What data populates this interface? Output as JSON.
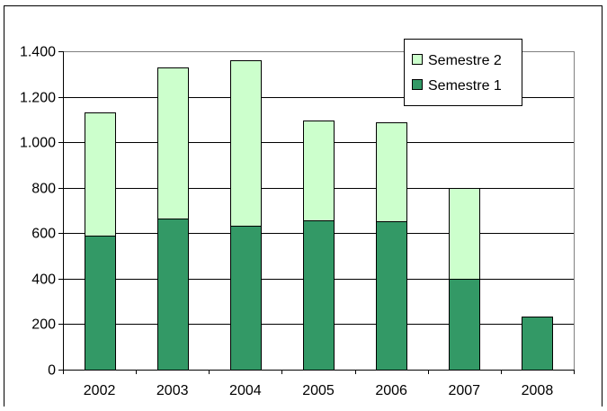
{
  "chart_data": {
    "type": "bar",
    "stacked": true,
    "categories": [
      "2002",
      "2003",
      "2004",
      "2005",
      "2006",
      "2007",
      "2008"
    ],
    "series": [
      {
        "name": "Semestre 1",
        "values": [
          590,
          665,
          632,
          658,
          652,
          398,
          235
        ],
        "color": "#339966"
      },
      {
        "name": "Semestre 2",
        "values": [
          540,
          665,
          728,
          437,
          437,
          402,
          null
        ],
        "color": "#ccffcc"
      }
    ],
    "title": "",
    "xlabel": "",
    "ylabel": "",
    "ylim": [
      0,
      1400
    ],
    "yticks": [
      0,
      200,
      400,
      600,
      800,
      1000,
      1200,
      1400
    ],
    "ytick_labels": [
      "0",
      "200",
      "400",
      "600",
      "800",
      "1.000",
      "1.200",
      "1.400"
    ],
    "grid": true,
    "legend": {
      "position": "top-right",
      "entries": [
        "Semestre 2",
        "Semestre 1"
      ]
    }
  }
}
